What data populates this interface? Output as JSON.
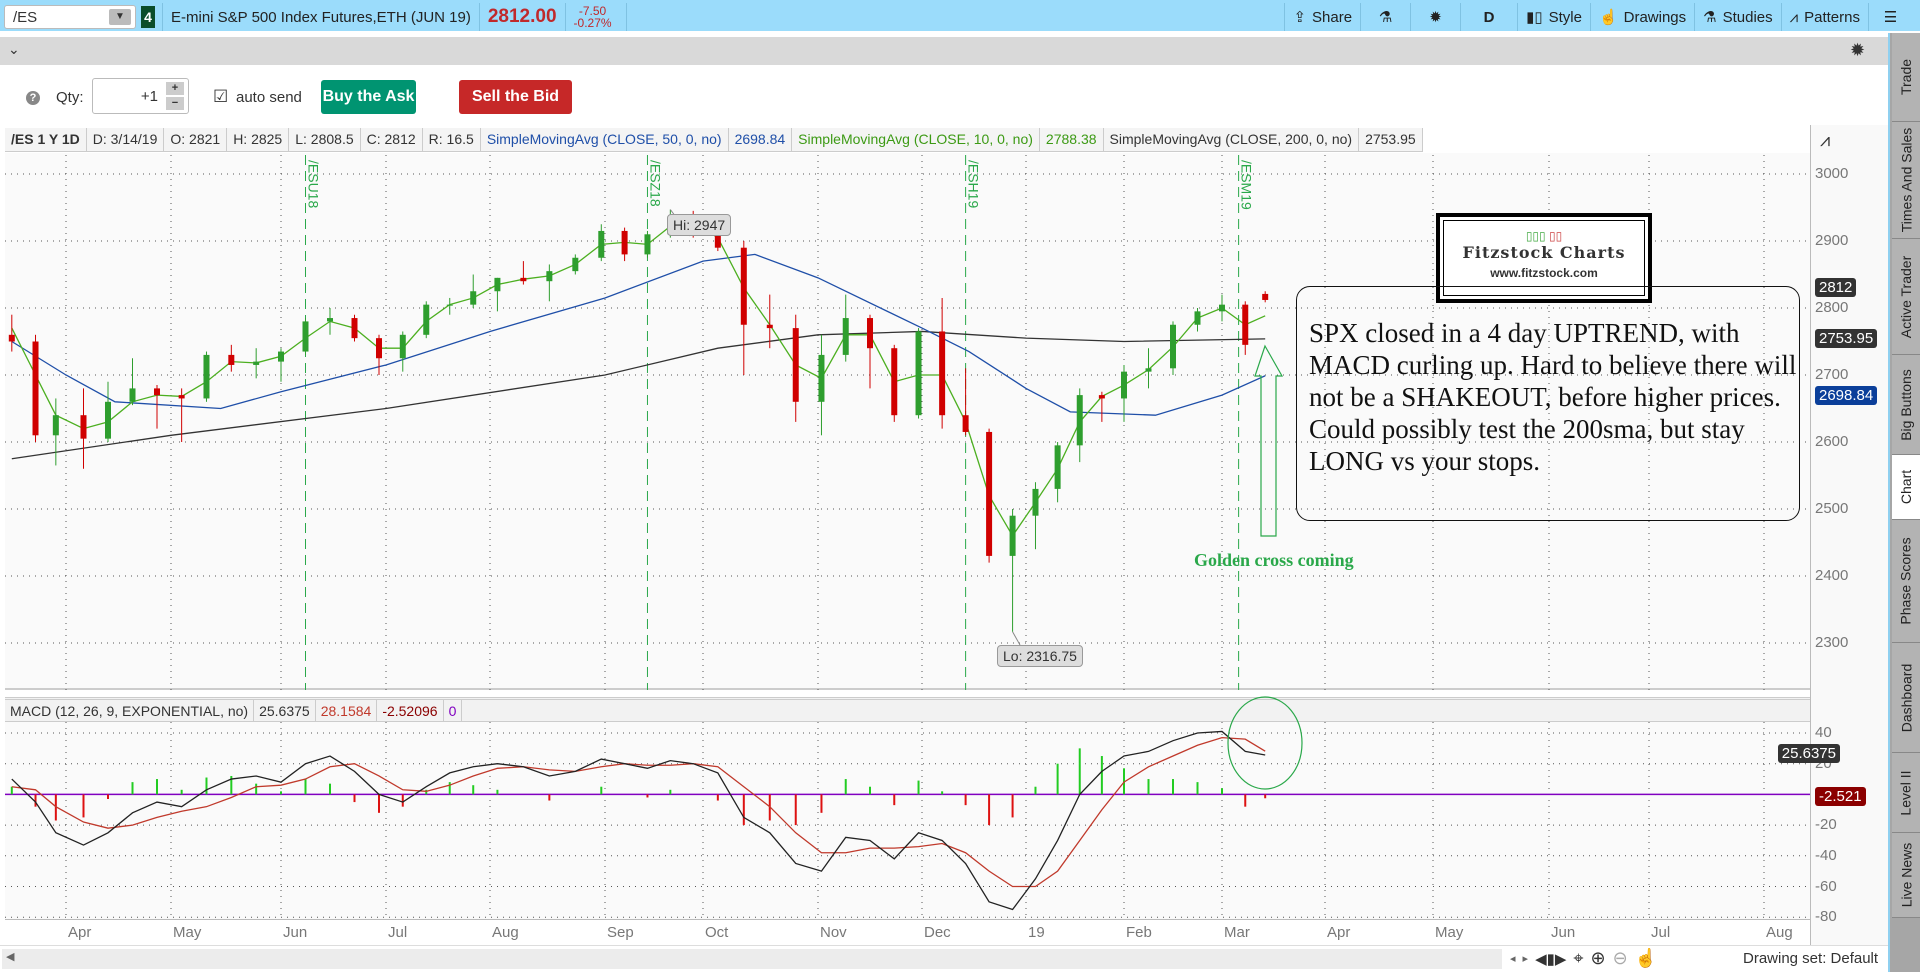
{
  "topbar": {
    "symbol": "/ES",
    "link_badge": "4",
    "title": "E-mini S&P 500 Index Futures,ETH (JUN 19)",
    "price": "2812.00",
    "change": "-7.50",
    "change_pct": "-0.27%",
    "share": "Share",
    "timeframe": "D",
    "style": "Style",
    "drawings": "Drawings",
    "studies": "Studies",
    "patterns": "Patterns"
  },
  "trade": {
    "qty_label": "Qty:",
    "qty_value": "+1",
    "auto_send": "auto send",
    "auto_send_checked": true,
    "buy": "Buy the Ask",
    "sell": "Sell the Bid"
  },
  "info": {
    "symbol": "/ES 1 Y 1D",
    "date": "D: 3/14/19",
    "open": "O: 2821",
    "high": "H: 2825",
    "low": "L: 2808.5",
    "close": "C: 2812",
    "range": "R: 16.5",
    "sma50_label": "SimpleMovingAvg (CLOSE, 50, 0, no)",
    "sma50_value": "2698.84",
    "sma10_label": "SimpleMovingAvg (CLOSE, 10, 0, no)",
    "sma10_value": "2788.38",
    "sma200_label": "SimpleMovingAvg (CLOSE, 200, 0, no)",
    "sma200_value": "2753.95"
  },
  "macd_header": {
    "label": "MACD (12, 26, 9, EXPONENTIAL, no)",
    "value": "25.6375",
    "avg": "28.1584",
    "diff": "-2.52096",
    "zero": "0"
  },
  "badges": {
    "last": "2812",
    "sma200": "2753.95",
    "sma50": "2698.84",
    "macd": "25.6375",
    "diff": "-2.521"
  },
  "annotations": {
    "hi": "Hi: 2947",
    "lo": "Lo: 2316.75",
    "golden": "Golden cross coming",
    "note": "SPX closed in a 4 day UPTREND, with MACD curling up.   Hard to believe there will not  be  a SHAKEOUT, before higher prices.  Could possibly test the 200sma, but stay LONG vs your stops.",
    "logo_title": "Fitzstock Charts",
    "logo_url": "www.fitzstock.com"
  },
  "sidebar": [
    "Trade",
    "Times And Sales",
    "Active Trader",
    "Big Buttons",
    "Chart",
    "Phase Scores",
    "Dashboard",
    "Level II",
    "Live News"
  ],
  "bottom": {
    "drawing_set": "Drawing set: Default"
  },
  "colors": {
    "up": "#2e9e2e",
    "down": "#d00000",
    "sma50": "#1f4fa8",
    "sma10": "#4caf20",
    "sma200": "#333333",
    "macd": "#222222",
    "signal": "#c0392b",
    "zero": "#8000c0",
    "roll": "#2aa84a",
    "buy": "#009471",
    "sell": "#c62828"
  },
  "chart_data": [
    {
      "type": "candlestick",
      "title": "/ES 1 Y 1D",
      "ylim": [
        2250,
        3050
      ],
      "yticks": [
        3000,
        2900,
        2800,
        2700,
        2600,
        2500,
        2400,
        2300
      ],
      "xticks": [
        "Apr",
        "May",
        "Jun",
        "Jul",
        "Aug",
        "Sep",
        "Oct",
        "Nov",
        "Dec",
        "19",
        "Feb",
        "Mar",
        "Apr",
        "May",
        "Jun",
        "Jul",
        "Aug"
      ],
      "columns": [
        "date",
        "open",
        "high",
        "low",
        "close"
      ],
      "candles": [
        [
          "2018-03-16",
          2760,
          2790,
          2735,
          2750
        ],
        [
          "2018-03-23",
          2750,
          2760,
          2600,
          2610
        ],
        [
          "2018-03-29",
          2610,
          2665,
          2565,
          2640
        ],
        [
          "2018-04-06",
          2640,
          2680,
          2560,
          2605
        ],
        [
          "2018-04-13",
          2605,
          2690,
          2600,
          2660
        ],
        [
          "2018-04-20",
          2660,
          2725,
          2655,
          2680
        ],
        [
          "2018-04-27",
          2680,
          2685,
          2620,
          2670
        ],
        [
          "2018-05-04",
          2670,
          2680,
          2600,
          2665
        ],
        [
          "2018-05-11",
          2665,
          2735,
          2660,
          2730
        ],
        [
          "2018-05-18",
          2730,
          2745,
          2705,
          2715
        ],
        [
          "2018-05-25",
          2715,
          2740,
          2695,
          2720
        ],
        [
          "2018-06-01",
          2720,
          2740,
          2690,
          2735
        ],
        [
          "2018-06-08",
          2735,
          2785,
          2730,
          2780
        ],
        [
          "2018-06-15",
          2780,
          2800,
          2760,
          2785
        ],
        [
          "2018-06-22",
          2785,
          2790,
          2750,
          2755
        ],
        [
          "2018-06-29",
          2755,
          2760,
          2700,
          2725
        ],
        [
          "2018-07-06",
          2725,
          2765,
          2705,
          2760
        ],
        [
          "2018-07-13",
          2760,
          2810,
          2755,
          2805
        ],
        [
          "2018-07-20",
          2805,
          2815,
          2790,
          2805
        ],
        [
          "2018-07-27",
          2805,
          2850,
          2800,
          2825
        ],
        [
          "2018-08-03",
          2825,
          2845,
          2795,
          2845
        ],
        [
          "2018-08-10",
          2845,
          2870,
          2835,
          2840
        ],
        [
          "2018-08-17",
          2840,
          2865,
          2810,
          2855
        ],
        [
          "2018-08-24",
          2855,
          2880,
          2850,
          2875
        ],
        [
          "2018-08-31",
          2875,
          2925,
          2870,
          2915
        ],
        [
          "2018-09-07",
          2915,
          2920,
          2870,
          2880
        ],
        [
          "2018-09-14",
          2880,
          2915,
          2875,
          2910
        ],
        [
          "2018-09-21",
          2910,
          2947,
          2905,
          2935
        ],
        [
          "2018-09-28",
          2935,
          2945,
          2905,
          2920
        ],
        [
          "2018-10-05",
          2920,
          2940,
          2885,
          2890
        ],
        [
          "2018-10-12",
          2890,
          2900,
          2700,
          2775
        ],
        [
          "2018-10-19",
          2775,
          2820,
          2740,
          2770
        ],
        [
          "2018-10-26",
          2770,
          2790,
          2630,
          2660
        ],
        [
          "2018-11-02",
          2660,
          2760,
          2610,
          2730
        ],
        [
          "2018-11-09",
          2730,
          2820,
          2720,
          2785
        ],
        [
          "2018-11-16",
          2785,
          2790,
          2680,
          2740
        ],
        [
          "2018-11-23",
          2740,
          2745,
          2630,
          2640
        ],
        [
          "2018-11-30",
          2640,
          2770,
          2635,
          2765
        ],
        [
          "2018-12-07",
          2765,
          2815,
          2620,
          2640
        ],
        [
          "2018-12-14",
          2640,
          2710,
          2610,
          2615
        ],
        [
          "2018-12-21",
          2615,
          2620,
          2420,
          2430
        ],
        [
          "2018-12-28",
          2430,
          2500,
          2316.75,
          2490
        ],
        [
          "2019-01-04",
          2490,
          2540,
          2440,
          2530
        ],
        [
          "2019-01-11",
          2530,
          2600,
          2510,
          2595
        ],
        [
          "2019-01-18",
          2595,
          2680,
          2570,
          2670
        ],
        [
          "2019-01-25",
          2670,
          2675,
          2630,
          2665
        ],
        [
          "2019-02-01",
          2665,
          2715,
          2630,
          2705
        ],
        [
          "2019-02-08",
          2705,
          2740,
          2680,
          2710
        ],
        [
          "2019-02-15",
          2710,
          2780,
          2700,
          2775
        ],
        [
          "2019-02-22",
          2775,
          2800,
          2765,
          2795
        ],
        [
          "2019-03-01",
          2795,
          2820,
          2780,
          2805
        ],
        [
          "2019-03-08",
          2805,
          2810,
          2730,
          2745
        ],
        [
          "2019-03-14",
          2821,
          2825,
          2808.5,
          2812
        ]
      ],
      "sma10": [
        2770,
        2700,
        2640,
        2620,
        2630,
        2660,
        2670,
        2668,
        2690,
        2720,
        2718,
        2728,
        2755,
        2780,
        2770,
        2740,
        2740,
        2780,
        2805,
        2815,
        2835,
        2843,
        2848,
        2865,
        2895,
        2898,
        2895,
        2922,
        2928,
        2905,
        2830,
        2775,
        2715,
        2695,
        2760,
        2760,
        2690,
        2700,
        2700,
        2630,
        2520,
        2460,
        2510,
        2560,
        2630,
        2668,
        2685,
        2708,
        2742,
        2785,
        2800,
        2775,
        2788.38
      ],
      "sma50": [
        [
          "2018-03-16",
          2750
        ],
        [
          "2018-04-01",
          2700
        ],
        [
          "2018-04-15",
          2660
        ],
        [
          "2018-05-15",
          2650
        ],
        [
          "2018-06-01",
          2675
        ],
        [
          "2018-07-01",
          2715
        ],
        [
          "2018-08-01",
          2765
        ],
        [
          "2018-09-01",
          2815
        ],
        [
          "2018-10-01",
          2870
        ],
        [
          "2018-10-15",
          2880
        ],
        [
          "2018-11-01",
          2845
        ],
        [
          "2018-12-01",
          2770
        ],
        [
          "2018-12-15",
          2735
        ],
        [
          "2019-01-01",
          2680
        ],
        [
          "2019-01-15",
          2645
        ],
        [
          "2019-02-10",
          2640
        ],
        [
          "2019-03-01",
          2670
        ],
        [
          "2019-03-14",
          2698.84
        ]
      ],
      "sma200": [
        [
          "2018-03-16",
          2575
        ],
        [
          "2018-05-01",
          2610
        ],
        [
          "2018-07-01",
          2650
        ],
        [
          "2018-09-01",
          2700
        ],
        [
          "2018-10-05",
          2740
        ],
        [
          "2018-11-01",
          2760
        ],
        [
          "2018-12-01",
          2765
        ],
        [
          "2019-01-01",
          2755
        ],
        [
          "2019-02-01",
          2750
        ],
        [
          "2019-03-14",
          2753.95
        ]
      ],
      "rolls": [
        [
          "2018-06-08",
          "/ESU18"
        ],
        [
          "2018-09-14",
          "/ESZ18"
        ],
        [
          "2018-12-14",
          "/ESH19"
        ],
        [
          "2019-03-06",
          "/ESM19"
        ]
      ],
      "hi": {
        "date": "2018-09-21",
        "value": 2947
      },
      "lo": {
        "date": "2018-12-28",
        "value": 2316.75
      }
    },
    {
      "type": "macd",
      "ylim": [
        -80,
        40
      ],
      "yticks": [
        40,
        20,
        -20,
        -40,
        -60,
        -80
      ],
      "macd": [
        10,
        -5,
        -25,
        -33,
        -25,
        -12,
        -5,
        -8,
        3,
        10,
        12,
        8,
        20,
        25,
        15,
        0,
        -5,
        5,
        14,
        18,
        20,
        18,
        12,
        15,
        23,
        20,
        17,
        22,
        20,
        14,
        -15,
        -25,
        -45,
        -50,
        -28,
        -30,
        -42,
        -25,
        -30,
        -45,
        -70,
        -75,
        -55,
        -30,
        0,
        15,
        25,
        28,
        35,
        40,
        41,
        28,
        25.6375
      ],
      "signal": [
        5,
        3,
        -8,
        -18,
        -22,
        -20,
        -15,
        -11,
        -8,
        -2,
        5,
        6,
        10,
        18,
        20,
        12,
        3,
        2,
        6,
        12,
        17,
        18,
        16,
        15,
        18,
        20,
        19,
        19,
        20,
        18,
        5,
        -8,
        -25,
        -38,
        -38,
        -35,
        -35,
        -34,
        -32,
        -38,
        -50,
        -60,
        -60,
        -50,
        -30,
        -10,
        8,
        18,
        25,
        32,
        37,
        36,
        28.1584
      ]
    }
  ]
}
